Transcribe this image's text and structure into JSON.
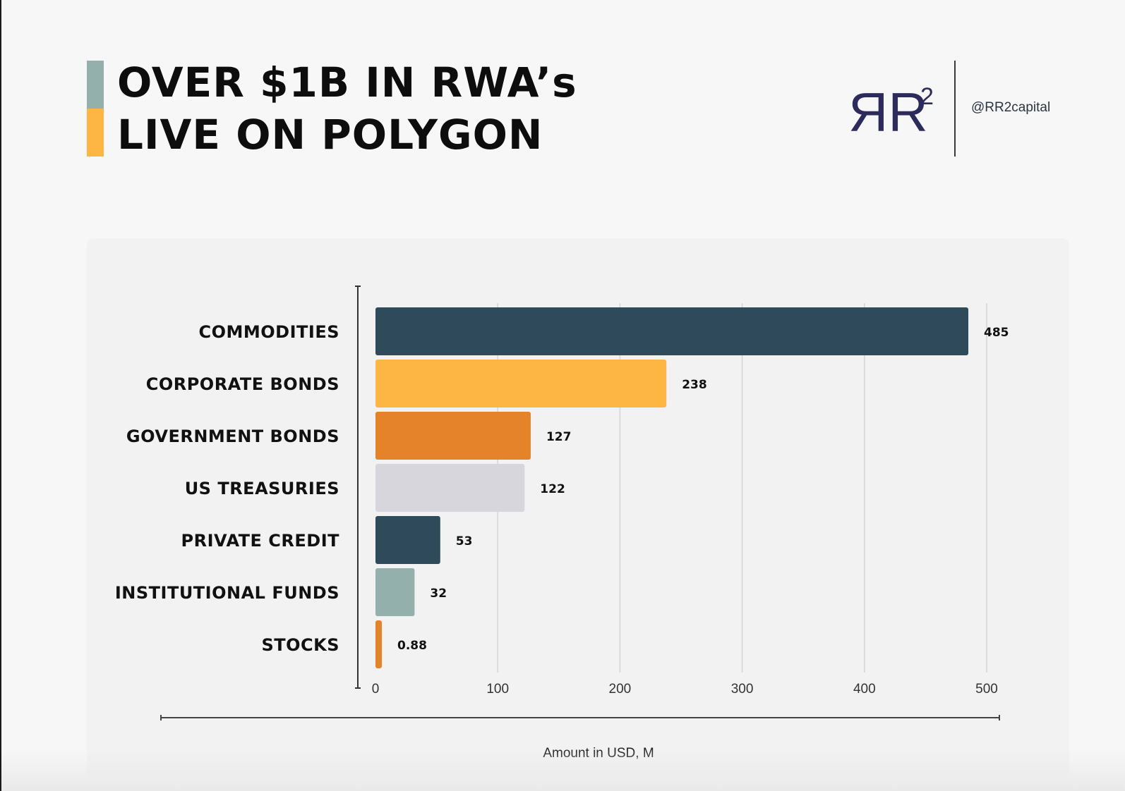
{
  "header": {
    "title_line1": "OVER $1B IN RWA’s",
    "title_line2": "LIVE ON POLYGON",
    "logo_text": "ЯR",
    "logo_superscript": "2",
    "handle": "@RR2capital"
  },
  "colors": {
    "navy": "#2f4a5b",
    "yellow": "#fdb643",
    "orange": "#e5832b",
    "light_gray": "#d6d6dc",
    "sage": "#94b0ac",
    "logo": "#2d2a5c"
  },
  "chart_data": {
    "type": "bar",
    "orientation": "horizontal",
    "categories": [
      "COMMODITIES",
      "CORPORATE BONDS",
      "GOVERNMENT BONDS",
      "US TREASURIES",
      "PRIVATE CREDIT",
      "INSTITUTIONAL FUNDS",
      "STOCKS"
    ],
    "values": [
      485,
      238,
      127,
      122,
      53,
      32,
      0.88
    ],
    "value_labels": [
      "485",
      "238",
      "127",
      "122",
      "53",
      "32",
      "0.88"
    ],
    "bar_colors": [
      "#2f4a5b",
      "#fdb643",
      "#e5832b",
      "#d6d6dc",
      "#2f4a5b",
      "#94b0ac",
      "#e5832b"
    ],
    "xlim": [
      0,
      500
    ],
    "xticks": [
      0,
      100,
      200,
      300,
      400,
      500
    ],
    "xlabel": "Amount in USD, M",
    "ylabel": "",
    "grid": true
  }
}
